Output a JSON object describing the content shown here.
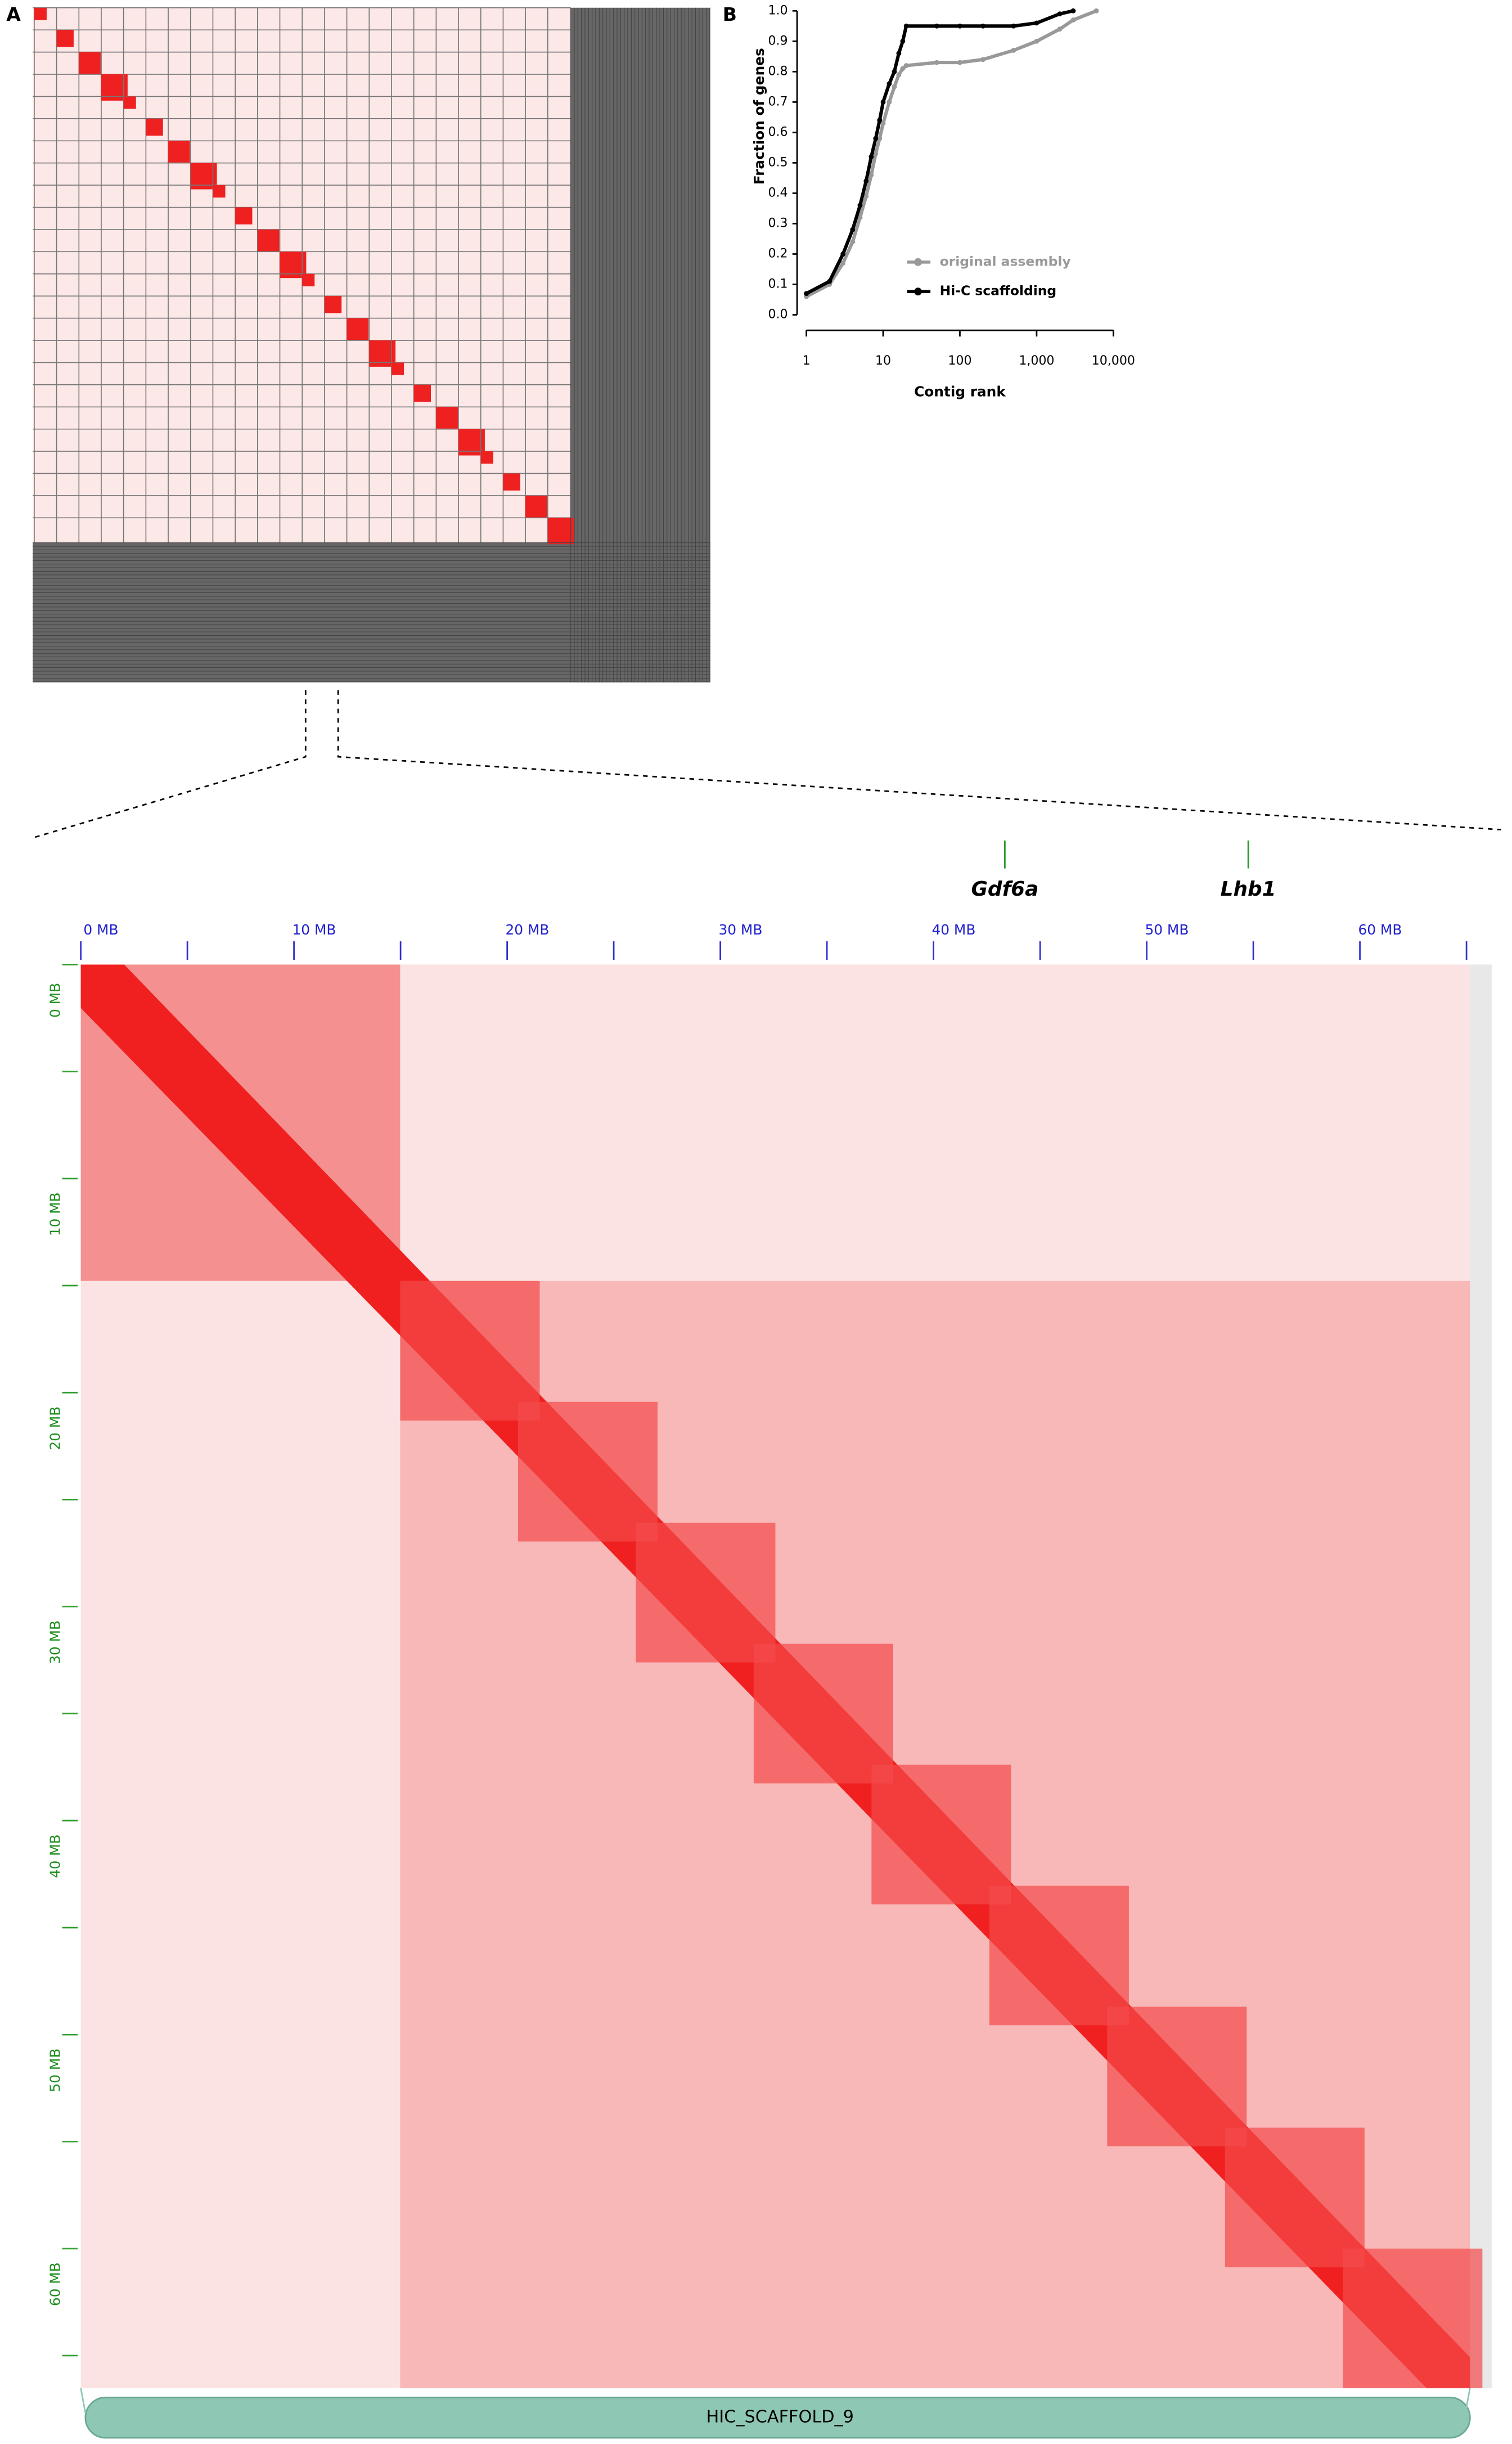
{
  "panel_labels": {
    "a": "A",
    "b": "B"
  },
  "chart_data": {
    "type": "line",
    "xlabel": "Contig rank",
    "ylabel": "Fraction of genes",
    "log_x": true,
    "x": [
      1,
      2,
      3,
      4,
      5,
      6,
      7,
      8,
      9,
      10,
      12,
      14,
      16,
      18,
      20,
      50,
      100,
      200,
      500,
      1000,
      2000,
      3000,
      6000
    ],
    "series": [
      {
        "name": "original assembly",
        "color": "#999999",
        "values": [
          0.06,
          0.1,
          0.17,
          0.24,
          0.32,
          0.39,
          0.46,
          0.53,
          0.58,
          0.63,
          0.7,
          0.75,
          0.79,
          0.81,
          0.82,
          0.83,
          0.83,
          0.84,
          0.87,
          0.9,
          0.94,
          0.97,
          1.0
        ]
      },
      {
        "name": "Hi-C scaffolding",
        "color": "#000000",
        "values": [
          0.07,
          0.11,
          0.2,
          0.28,
          0.36,
          0.44,
          0.52,
          0.58,
          0.64,
          0.7,
          0.76,
          0.8,
          0.86,
          0.9,
          0.95,
          0.95,
          0.95,
          0.95,
          0.95,
          0.96,
          0.99,
          1.0,
          null
        ]
      }
    ],
    "xlim": [
      1,
      10000
    ],
    "xticks": [
      1,
      10,
      100,
      {
        "value": 1000,
        "label": "1,000"
      },
      {
        "value": 10000,
        "label": "10,000"
      }
    ],
    "ylim": [
      0,
      1
    ],
    "yticks": [
      {
        "value": 0,
        "label": "0.0"
      },
      0.1,
      0.2,
      0.3,
      0.4,
      0.5,
      0.6,
      0.7,
      0.8,
      0.9,
      {
        "value": 1,
        "label": "1.0"
      }
    ],
    "legend": "lower right"
  },
  "heatmap": {
    "x_ticks": [
      "0 MB",
      "10 MB",
      "20 MB",
      "30 MB",
      "40 MB",
      "50 MB",
      "60 MB"
    ],
    "y_ticks": [
      "0 MB",
      "10 MB",
      "20 MB",
      "30 MB",
      "40 MB",
      "50 MB",
      "60 MB"
    ],
    "genes": [
      "Gdf6a",
      "Lhb1"
    ],
    "scaffold": "HIC_SCAFFOLD_9"
  }
}
